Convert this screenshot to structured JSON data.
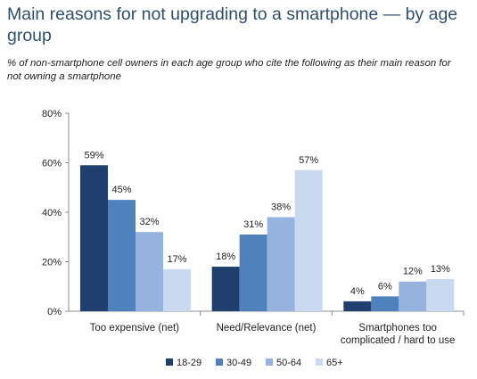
{
  "title": "Main reasons for not upgrading to a smartphone — by age group",
  "subtitle": "% of non-smartphone cell owners in each age group who cite the following as their main reason for not owning a smartphone",
  "chart_data": {
    "type": "bar",
    "categories": [
      [
        "Too expensive (net)"
      ],
      [
        "Need/Relevance (net)"
      ],
      [
        "Smartphones too",
        "complicated / hard to use"
      ]
    ],
    "series": [
      {
        "name": "18-29",
        "values": [
          59,
          18,
          4
        ],
        "color": "#1f3f6e"
      },
      {
        "name": "30-49",
        "values": [
          45,
          31,
          6
        ],
        "color": "#4f81bd"
      },
      {
        "name": "50-64",
        "values": [
          32,
          38,
          12
        ],
        "color": "#95b3de"
      },
      {
        "name": "65+",
        "values": [
          17,
          57,
          13
        ],
        "color": "#c9d9ef"
      }
    ],
    "value_suffix": "%",
    "ylim": [
      0,
      80
    ],
    "yticks": [
      0,
      20,
      40,
      60,
      80
    ],
    "ytick_labels": [
      "0%",
      "20%",
      "40%",
      "60%",
      "80%"
    ],
    "grid": false,
    "legend_position": "bottom"
  }
}
